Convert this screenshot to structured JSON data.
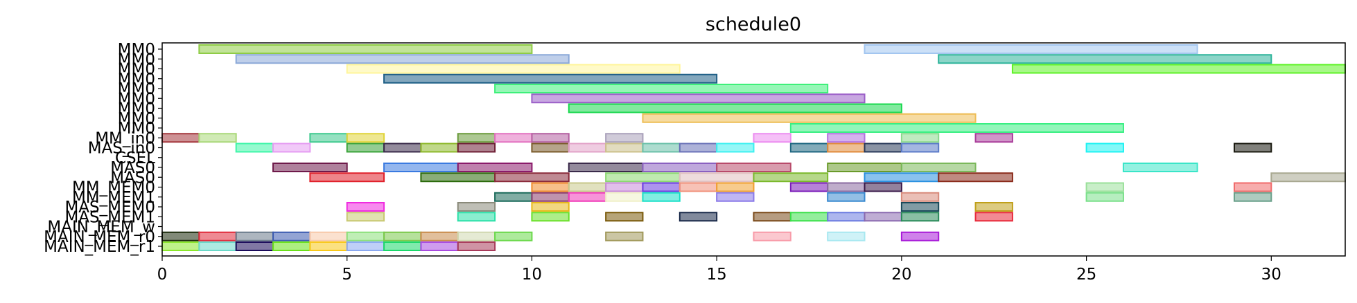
{
  "chart_data": {
    "type": "gantt",
    "title": "schedule0",
    "xlabel": "",
    "ylabel": "",
    "xlim": [
      0,
      32
    ],
    "x_ticks": [
      0,
      5,
      10,
      15,
      20,
      25,
      30
    ],
    "grid": false,
    "rows": [
      "MM0",
      "MM0",
      "MM0",
      "MM0",
      "MM0",
      "MM0",
      "MM0",
      "MM0",
      "MM0",
      "MM_in0",
      "MAS_in0",
      "CSEL",
      "MAS0",
      "MAS0",
      "MM_MEM0",
      "MM_MEM1",
      "MAS_MEM0",
      "MAS_MEM1",
      "MAIN_MEM_w",
      "MAIN_MEM_r0",
      "MAIN_MEM_r1"
    ],
    "tasks": [
      {
        "row": 0,
        "start": 1,
        "end": 10,
        "color": "#8fcc46"
      },
      {
        "row": 0,
        "start": 19,
        "end": 28,
        "color": "#a3c6f0"
      },
      {
        "row": 1,
        "start": 2,
        "end": 11,
        "color": "#8aa8d8"
      },
      {
        "row": 1,
        "start": 21,
        "end": 30,
        "color": "#2db39a"
      },
      {
        "row": 2,
        "start": 5,
        "end": 14,
        "color": "#fff59a"
      },
      {
        "row": 2,
        "start": 23,
        "end": 32,
        "color": "#5ef226"
      },
      {
        "row": 3,
        "start": 6,
        "end": 15,
        "color": "#1e5f86"
      },
      {
        "row": 4,
        "start": 9,
        "end": 18,
        "color": "#3ef07a"
      },
      {
        "row": 5,
        "start": 10,
        "end": 19,
        "color": "#9b5fc8"
      },
      {
        "row": 6,
        "start": 11,
        "end": 20,
        "color": "#19d84e"
      },
      {
        "row": 7,
        "start": 13,
        "end": 22,
        "color": "#eebd55"
      },
      {
        "row": 8,
        "start": 17,
        "end": 26,
        "color": "#38ef82"
      },
      {
        "row": 9,
        "start": 0,
        "end": 1,
        "color": "#a4363c"
      },
      {
        "row": 9,
        "start": 1,
        "end": 2,
        "color": "#a9d878"
      },
      {
        "row": 9,
        "start": 4,
        "end": 5,
        "color": "#3ec98e"
      },
      {
        "row": 9,
        "start": 5,
        "end": 6,
        "color": "#e0d438"
      },
      {
        "row": 9,
        "start": 8,
        "end": 9,
        "color": "#6a9a3a"
      },
      {
        "row": 9,
        "start": 9,
        "end": 10,
        "color": "#e271c0"
      },
      {
        "row": 9,
        "start": 10,
        "end": 11,
        "color": "#b35fa0"
      },
      {
        "row": 9,
        "start": 12,
        "end": 13,
        "color": "#a9a0ba"
      },
      {
        "row": 9,
        "start": 16,
        "end": 17,
        "color": "#ec8cf0"
      },
      {
        "row": 9,
        "start": 18,
        "end": 19,
        "color": "#b471e0"
      },
      {
        "row": 9,
        "start": 20,
        "end": 21,
        "color": "#8ad98c"
      },
      {
        "row": 9,
        "start": 22,
        "end": 23,
        "color": "#a93c9a"
      },
      {
        "row": 10,
        "start": 2,
        "end": 3,
        "color": "#3ef5a8"
      },
      {
        "row": 10,
        "start": 3,
        "end": 4,
        "color": "#e59cf2"
      },
      {
        "row": 10,
        "start": 5,
        "end": 6,
        "color": "#3aa33a"
      },
      {
        "row": 10,
        "start": 6,
        "end": 7,
        "color": "#3a2b4a"
      },
      {
        "row": 10,
        "start": 7,
        "end": 8,
        "color": "#8db82a"
      },
      {
        "row": 10,
        "start": 8,
        "end": 9,
        "color": "#6e1e34"
      },
      {
        "row": 10,
        "start": 10,
        "end": 11,
        "color": "#7a5a2a"
      },
      {
        "row": 10,
        "start": 11,
        "end": 12,
        "color": "#e2a2c8"
      },
      {
        "row": 10,
        "start": 12,
        "end": 13,
        "color": "#cbc08a"
      },
      {
        "row": 10,
        "start": 13,
        "end": 14,
        "color": "#6ac0a8"
      },
      {
        "row": 10,
        "start": 14,
        "end": 15,
        "color": "#6a72b8"
      },
      {
        "row": 10,
        "start": 15,
        "end": 16,
        "color": "#3ef0f0"
      },
      {
        "row": 10,
        "start": 17,
        "end": 18,
        "color": "#1d6680"
      },
      {
        "row": 10,
        "start": 18,
        "end": 19,
        "color": "#e08a3a"
      },
      {
        "row": 10,
        "start": 19,
        "end": 20,
        "color": "#2a3a5a"
      },
      {
        "row": 10,
        "start": 20,
        "end": 21,
        "color": "#5a7ac8"
      },
      {
        "row": 10,
        "start": 25,
        "end": 26,
        "color": "#1ef2f2"
      },
      {
        "row": 10,
        "start": 29,
        "end": 30,
        "color": "#1a1a10"
      },
      {
        "row": 12,
        "start": 3,
        "end": 5,
        "color": "#6e1a4a"
      },
      {
        "row": 12,
        "start": 6,
        "end": 8,
        "color": "#3a7ae0"
      },
      {
        "row": 12,
        "start": 8,
        "end": 10,
        "color": "#8a1a6a"
      },
      {
        "row": 12,
        "start": 11,
        "end": 13,
        "color": "#3a2a4a"
      },
      {
        "row": 12,
        "start": 13,
        "end": 15,
        "color": "#8a60c0"
      },
      {
        "row": 12,
        "start": 15,
        "end": 17,
        "color": "#b84a6a"
      },
      {
        "row": 12,
        "start": 18,
        "end": 20,
        "color": "#6a9a2a"
      },
      {
        "row": 12,
        "start": 20,
        "end": 22,
        "color": "#7ab85a"
      },
      {
        "row": 12,
        "start": 26,
        "end": 28,
        "color": "#3ae5c8"
      },
      {
        "row": 13,
        "start": 4,
        "end": 6,
        "color": "#e0202a"
      },
      {
        "row": 13,
        "start": 7,
        "end": 9,
        "color": "#2a6a0a"
      },
      {
        "row": 13,
        "start": 9,
        "end": 11,
        "color": "#8a2a3a"
      },
      {
        "row": 13,
        "start": 12,
        "end": 14,
        "color": "#8ad870"
      },
      {
        "row": 13,
        "start": 14,
        "end": 16,
        "color": "#e0c0c0"
      },
      {
        "row": 13,
        "start": 16,
        "end": 18,
        "color": "#7ab82a"
      },
      {
        "row": 13,
        "start": 19,
        "end": 21,
        "color": "#2a90e0"
      },
      {
        "row": 13,
        "start": 21,
        "end": 23,
        "color": "#8a2a1a"
      },
      {
        "row": 13,
        "start": 30,
        "end": 32,
        "color": "#a8a890"
      },
      {
        "row": 14,
        "start": 10,
        "end": 11,
        "color": "#f08a2a"
      },
      {
        "row": 14,
        "start": 11,
        "end": 12,
        "color": "#c8c88a"
      },
      {
        "row": 14,
        "start": 12,
        "end": 13,
        "color": "#c88ad8"
      },
      {
        "row": 14,
        "start": 13,
        "end": 14,
        "color": "#6a3ae0"
      },
      {
        "row": 14,
        "start": 14,
        "end": 15,
        "color": "#f0907a"
      },
      {
        "row": 14,
        "start": 15,
        "end": 16,
        "color": "#f0a030"
      },
      {
        "row": 14,
        "start": 17,
        "end": 18,
        "color": "#7a1ab8"
      },
      {
        "row": 14,
        "start": 18,
        "end": 19,
        "color": "#8a6aa0"
      },
      {
        "row": 14,
        "start": 19,
        "end": 20,
        "color": "#3a1a4a"
      },
      {
        "row": 14,
        "start": 25,
        "end": 26,
        "color": "#9ae09a"
      },
      {
        "row": 14,
        "start": 29,
        "end": 30,
        "color": "#f06a6a"
      },
      {
        "row": 15,
        "start": 9,
        "end": 10,
        "color": "#1a6a5a"
      },
      {
        "row": 15,
        "start": 10,
        "end": 11,
        "color": "#8a3a6a"
      },
      {
        "row": 15,
        "start": 11,
        "end": 12,
        "color": "#f03ab8"
      },
      {
        "row": 15,
        "start": 12,
        "end": 13,
        "color": "#f0f0c8"
      },
      {
        "row": 15,
        "start": 13,
        "end": 14,
        "color": "#1ae0c8"
      },
      {
        "row": 15,
        "start": 15,
        "end": 16,
        "color": "#8a7ae8"
      },
      {
        "row": 15,
        "start": 18,
        "end": 19,
        "color": "#3a8ad0"
      },
      {
        "row": 15,
        "start": 20,
        "end": 21,
        "color": "#d88a7a"
      },
      {
        "row": 15,
        "start": 25,
        "end": 26,
        "color": "#7ae08a"
      },
      {
        "row": 15,
        "start": 29,
        "end": 30,
        "color": "#6aa08a"
      },
      {
        "row": 16,
        "start": 5,
        "end": 6,
        "color": "#f02ae0"
      },
      {
        "row": 16,
        "start": 8,
        "end": 9,
        "color": "#8a8a7a"
      },
      {
        "row": 16,
        "start": 10,
        "end": 11,
        "color": "#e8b81a"
      },
      {
        "row": 16,
        "start": 20,
        "end": 21,
        "color": "#1a4a5a"
      },
      {
        "row": 16,
        "start": 22,
        "end": 23,
        "color": "#c0a01a"
      },
      {
        "row": 17,
        "start": 5,
        "end": 6,
        "color": "#c8c870"
      },
      {
        "row": 17,
        "start": 8,
        "end": 9,
        "color": "#2ae0a8"
      },
      {
        "row": 17,
        "start": 10,
        "end": 11,
        "color": "#6ae02a"
      },
      {
        "row": 17,
        "start": 12,
        "end": 13,
        "color": "#7a5a0a"
      },
      {
        "row": 17,
        "start": 14,
        "end": 15,
        "color": "#1a2a4a"
      },
      {
        "row": 17,
        "start": 16,
        "end": 17,
        "color": "#7a4a1a"
      },
      {
        "row": 17,
        "start": 17,
        "end": 18,
        "color": "#3ae04a"
      },
      {
        "row": 17,
        "start": 18,
        "end": 19,
        "color": "#6a7ae0"
      },
      {
        "row": 17,
        "start": 19,
        "end": 20,
        "color": "#8a6ab0"
      },
      {
        "row": 17,
        "start": 20,
        "end": 21,
        "color": "#2a8a5a"
      },
      {
        "row": 17,
        "start": 22,
        "end": 23,
        "color": "#e82a3a"
      },
      {
        "row": 19,
        "start": 0,
        "end": 1,
        "color": "#1a2a0a"
      },
      {
        "row": 19,
        "start": 1,
        "end": 2,
        "color": "#e02a3a"
      },
      {
        "row": 19,
        "start": 2,
        "end": 3,
        "color": "#6a7a8a"
      },
      {
        "row": 19,
        "start": 3,
        "end": 4,
        "color": "#3a5ab0"
      },
      {
        "row": 19,
        "start": 4,
        "end": 5,
        "color": "#f8c8a8"
      },
      {
        "row": 19,
        "start": 5,
        "end": 6,
        "color": "#8ae07a"
      },
      {
        "row": 19,
        "start": 6,
        "end": 7,
        "color": "#7ac84a"
      },
      {
        "row": 19,
        "start": 7,
        "end": 8,
        "color": "#c88a4a"
      },
      {
        "row": 19,
        "start": 8,
        "end": 9,
        "color": "#d0d8b0"
      },
      {
        "row": 19,
        "start": 9,
        "end": 10,
        "color": "#6ad84a"
      },
      {
        "row": 19,
        "start": 12,
        "end": 13,
        "color": "#a0985a"
      },
      {
        "row": 19,
        "start": 16,
        "end": 17,
        "color": "#f89aa8"
      },
      {
        "row": 19,
        "start": 18,
        "end": 19,
        "color": "#a8e8f0"
      },
      {
        "row": 19,
        "start": 20,
        "end": 21,
        "color": "#a81ad8"
      },
      {
        "row": 20,
        "start": 0,
        "end": 1,
        "color": "#8ae82a"
      },
      {
        "row": 20,
        "start": 1,
        "end": 2,
        "color": "#6ad8c8"
      },
      {
        "row": 20,
        "start": 2,
        "end": 3,
        "color": "#1a0a5a"
      },
      {
        "row": 20,
        "start": 3,
        "end": 4,
        "color": "#6ae01a"
      },
      {
        "row": 20,
        "start": 4,
        "end": 5,
        "color": "#f8c81a"
      },
      {
        "row": 20,
        "start": 5,
        "end": 6,
        "color": "#8aa8f0"
      },
      {
        "row": 20,
        "start": 6,
        "end": 7,
        "color": "#1ad86a"
      },
      {
        "row": 20,
        "start": 7,
        "end": 8,
        "color": "#a84ae0"
      },
      {
        "row": 20,
        "start": 8,
        "end": 9,
        "color": "#a83a5a"
      }
    ]
  }
}
